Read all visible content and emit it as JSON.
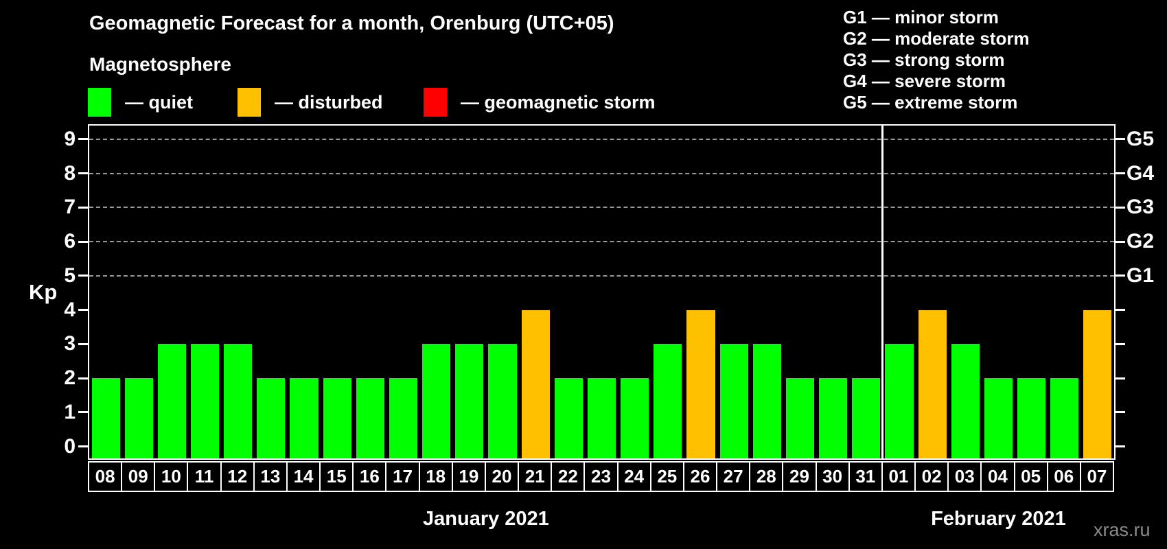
{
  "header": {
    "title": "Geomagnetic Forecast for a month, Orenburg (UTC+05)",
    "subtitle": "Magnetosphere"
  },
  "watermark": "xras.ru",
  "chart_data": {
    "type": "bar",
    "title": "Geomagnetic Forecast for a month, Orenburg (UTC+05)",
    "subtitle": "Magnetosphere",
    "ylabel": "Kp",
    "ylim": [
      -0.35,
      9.4
    ],
    "yticks": [
      0,
      1,
      2,
      3,
      4,
      5,
      6,
      7,
      8,
      9
    ],
    "grid_values": [
      5,
      6,
      7,
      8,
      9
    ],
    "grid": "dashed horizontal at G-storm levels only",
    "legend_position": "top-left",
    "state_colors": {
      "quiet": "#00FF00",
      "disturbed": "#FFC000",
      "storm": "#FF0000"
    },
    "legend": [
      {
        "label": "— quiet",
        "state": "quiet",
        "color": "#00FF00"
      },
      {
        "label": "— disturbed",
        "state": "disturbed",
        "color": "#FFC000"
      },
      {
        "label": "— geomagnetic storm",
        "state": "storm",
        "color": "#FF0000"
      }
    ],
    "g_scale_legend": [
      "G1 — minor storm",
      "G2 — moderate storm",
      "G3 — strong storm",
      "G4 — severe storm",
      "G5 — extreme storm"
    ],
    "right_axis": {
      "labels": [
        "G1",
        "G2",
        "G3",
        "G4",
        "G5"
      ],
      "values": [
        5,
        6,
        7,
        8,
        9
      ]
    },
    "months": [
      {
        "label": "January 2021",
        "days": [
          {
            "day": "08",
            "kp": 2,
            "state": "quiet"
          },
          {
            "day": "09",
            "kp": 2,
            "state": "quiet"
          },
          {
            "day": "10",
            "kp": 3,
            "state": "quiet"
          },
          {
            "day": "11",
            "kp": 3,
            "state": "quiet"
          },
          {
            "day": "12",
            "kp": 3,
            "state": "quiet"
          },
          {
            "day": "13",
            "kp": 2,
            "state": "quiet"
          },
          {
            "day": "14",
            "kp": 2,
            "state": "quiet"
          },
          {
            "day": "15",
            "kp": 2,
            "state": "quiet"
          },
          {
            "day": "16",
            "kp": 2,
            "state": "quiet"
          },
          {
            "day": "17",
            "kp": 2,
            "state": "quiet"
          },
          {
            "day": "18",
            "kp": 3,
            "state": "quiet"
          },
          {
            "day": "19",
            "kp": 3,
            "state": "quiet"
          },
          {
            "day": "20",
            "kp": 3,
            "state": "quiet"
          },
          {
            "day": "21",
            "kp": 4,
            "state": "disturbed"
          },
          {
            "day": "22",
            "kp": 2,
            "state": "quiet"
          },
          {
            "day": "23",
            "kp": 2,
            "state": "quiet"
          },
          {
            "day": "24",
            "kp": 2,
            "state": "quiet"
          },
          {
            "day": "25",
            "kp": 3,
            "state": "quiet"
          },
          {
            "day": "26",
            "kp": 4,
            "state": "disturbed"
          },
          {
            "day": "27",
            "kp": 3,
            "state": "quiet"
          },
          {
            "day": "28",
            "kp": 3,
            "state": "quiet"
          },
          {
            "day": "29",
            "kp": 2,
            "state": "quiet"
          },
          {
            "day": "30",
            "kp": 2,
            "state": "quiet"
          },
          {
            "day": "31",
            "kp": 2,
            "state": "quiet"
          }
        ]
      },
      {
        "label": "February 2021",
        "days": [
          {
            "day": "01",
            "kp": 3,
            "state": "quiet"
          },
          {
            "day": "02",
            "kp": 4,
            "state": "disturbed"
          },
          {
            "day": "03",
            "kp": 3,
            "state": "quiet"
          },
          {
            "day": "04",
            "kp": 2,
            "state": "quiet"
          },
          {
            "day": "05",
            "kp": 2,
            "state": "quiet"
          },
          {
            "day": "06",
            "kp": 2,
            "state": "quiet"
          },
          {
            "day": "07",
            "kp": 4,
            "state": "disturbed"
          }
        ]
      }
    ]
  }
}
